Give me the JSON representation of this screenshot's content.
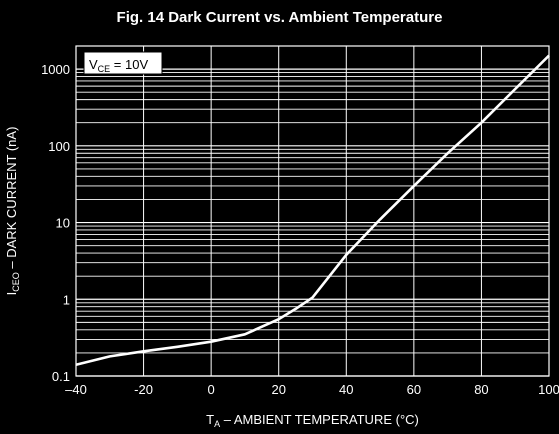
{
  "colors": {
    "background": "#000000",
    "plot_area": "#000000",
    "grid": "#ffffff",
    "curve": "#ffffff",
    "text": "#ffffff"
  },
  "chart_data": {
    "type": "line",
    "title": "Fig. 14 Dark Current vs. Ambient Temperature",
    "xlabel": {
      "prefix": "T",
      "sub": "A",
      "suffix": " – AMBIENT TEMPERATURE (°C)"
    },
    "ylabel": {
      "prefix": "I",
      "sub": "CEO",
      "suffix": " – DARK CURRENT (nA)"
    },
    "annotation": {
      "prefix": "V",
      "sub": "CE",
      "suffix": " = 10V"
    },
    "x_scale": "linear",
    "y_scale": "log",
    "xlim": [
      -40,
      100
    ],
    "ylim": [
      0.1,
      2000
    ],
    "x_ticks": [
      -40,
      -20,
      0,
      20,
      40,
      60,
      80,
      100
    ],
    "x_tick_labels": [
      "–40",
      "-20",
      "0",
      "20",
      "40",
      "60",
      "80",
      "100"
    ],
    "y_ticks": [
      0.1,
      1,
      10,
      100,
      1000
    ],
    "y_tick_labels": [
      "0.1",
      "1",
      "10",
      "100",
      "1000"
    ],
    "grid": true,
    "series": [
      {
        "x": [
          -40,
          -30,
          -20,
          -10,
          0,
          10,
          20,
          25,
          30,
          40,
          50,
          60,
          70,
          80,
          90,
          100
        ],
        "y": [
          0.14,
          0.18,
          0.21,
          0.24,
          0.28,
          0.35,
          0.55,
          0.75,
          1.05,
          3.8,
          11,
          30,
          80,
          200,
          550,
          1500
        ]
      }
    ]
  }
}
